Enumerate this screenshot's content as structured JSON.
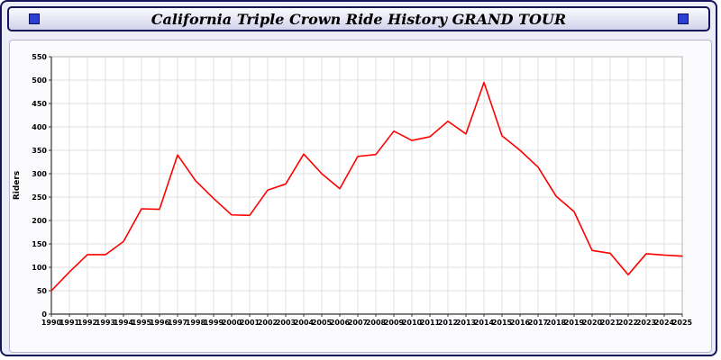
{
  "header": {
    "left_square": "blue-square",
    "right_square": "blue-square"
  },
  "chart_data": {
    "type": "line",
    "title": "California Triple Crown Ride History GRAND TOUR",
    "xlabel": "",
    "ylabel": "Riders",
    "ylim": [
      0,
      550
    ],
    "ytick_step": 50,
    "grid": true,
    "legend": "none",
    "line_color": "#ff0000",
    "grid_color": "#d4d4d4",
    "axis_color": "#333333",
    "x": [
      1990,
      1991,
      1992,
      1993,
      1994,
      1995,
      1996,
      1997,
      1998,
      1999,
      2000,
      2001,
      2002,
      2003,
      2004,
      2005,
      2006,
      2007,
      2008,
      2009,
      2010,
      2011,
      2012,
      2013,
      2014,
      2015,
      2016,
      2017,
      2018,
      2019,
      2020,
      2021,
      2022,
      2023,
      2024,
      2025
    ],
    "values": [
      50,
      90,
      127,
      127,
      155,
      225,
      224,
      340,
      285,
      247,
      212,
      211,
      265,
      278,
      342,
      300,
      268,
      337,
      341,
      391,
      371,
      379,
      412,
      385,
      495,
      381,
      350,
      314,
      252,
      219,
      136,
      130,
      84,
      129,
      126,
      124
    ]
  }
}
